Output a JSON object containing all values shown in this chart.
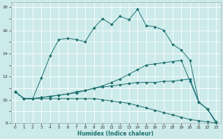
{
  "xlabel": "Humidex (Indice chaleur)",
  "bg_color": "#cceaea",
  "line_color": "#1e7070",
  "grid_color": "#ffffff",
  "xlim": [
    -0.5,
    23.5
  ],
  "ylim": [
    8,
    18.4
  ],
  "xtick_labels": [
    "0",
    "1",
    "2",
    "3",
    "4",
    "5",
    "6",
    "7",
    "8",
    "9",
    "10",
    "11",
    "12",
    "13",
    "14",
    "15",
    "16",
    "17",
    "18",
    "19",
    "20",
    "21",
    "22",
    "23"
  ],
  "ytick_labels": [
    "8",
    "",
    "10",
    "",
    "12",
    "",
    "14",
    "",
    "16",
    "",
    "18"
  ],
  "yticks": [
    8,
    9,
    10,
    11,
    12,
    13,
    14,
    15,
    16,
    17,
    18
  ],
  "xticks": [
    0,
    1,
    2,
    3,
    4,
    5,
    6,
    7,
    8,
    9,
    10,
    11,
    12,
    13,
    14,
    15,
    16,
    17,
    18,
    19,
    20,
    21,
    22,
    23
  ],
  "line1_x": [
    0,
    1,
    2,
    3,
    4,
    5,
    6,
    7,
    8,
    9,
    10,
    11,
    12,
    13,
    14,
    15,
    16,
    17,
    18,
    19,
    20,
    21,
    22,
    23
  ],
  "line1_y": [
    10.7,
    10.1,
    10.1,
    11.9,
    13.8,
    15.2,
    15.3,
    15.2,
    15.0,
    16.2,
    17.0,
    16.5,
    17.2,
    16.9,
    17.8,
    16.4,
    16.3,
    16.0,
    14.8,
    14.3,
    13.4,
    9.8,
    9.2,
    8.1
  ],
  "line2_x": [
    0,
    1,
    2,
    3,
    4,
    5,
    6,
    7,
    8,
    9,
    10,
    11,
    12,
    13,
    14,
    15,
    16,
    17,
    18,
    19,
    20,
    21,
    22,
    23
  ],
  "line2_y": [
    10.7,
    10.1,
    10.1,
    10.1,
    10.1,
    10.1,
    10.1,
    10.1,
    10.1,
    10.1,
    10.0,
    9.9,
    9.8,
    9.7,
    9.5,
    9.3,
    9.1,
    8.9,
    8.7,
    8.5,
    8.3,
    8.2,
    8.1,
    8.0
  ],
  "line3_x": [
    0,
    1,
    2,
    3,
    4,
    5,
    6,
    7,
    8,
    9,
    10,
    11,
    12,
    13,
    14,
    15,
    16,
    17,
    18,
    19,
    20,
    21,
    22,
    23
  ],
  "line3_y": [
    10.7,
    10.1,
    10.1,
    10.2,
    10.3,
    10.4,
    10.5,
    10.6,
    10.8,
    11.0,
    11.2,
    11.5,
    11.8,
    12.2,
    12.6,
    13.0,
    13.1,
    13.2,
    13.3,
    13.4,
    11.6,
    9.8,
    9.2,
    8.0
  ],
  "line4_x": [
    0,
    1,
    2,
    3,
    4,
    5,
    6,
    7,
    8,
    9,
    10,
    11,
    12,
    13,
    14,
    15,
    16,
    17,
    18,
    19,
    20,
    21,
    22,
    23
  ],
  "line4_y": [
    10.7,
    10.1,
    10.1,
    10.2,
    10.3,
    10.4,
    10.5,
    10.7,
    10.8,
    11.0,
    11.1,
    11.2,
    11.3,
    11.4,
    11.5,
    11.5,
    11.5,
    11.6,
    11.6,
    11.7,
    11.8,
    9.8,
    9.2,
    8.0
  ]
}
